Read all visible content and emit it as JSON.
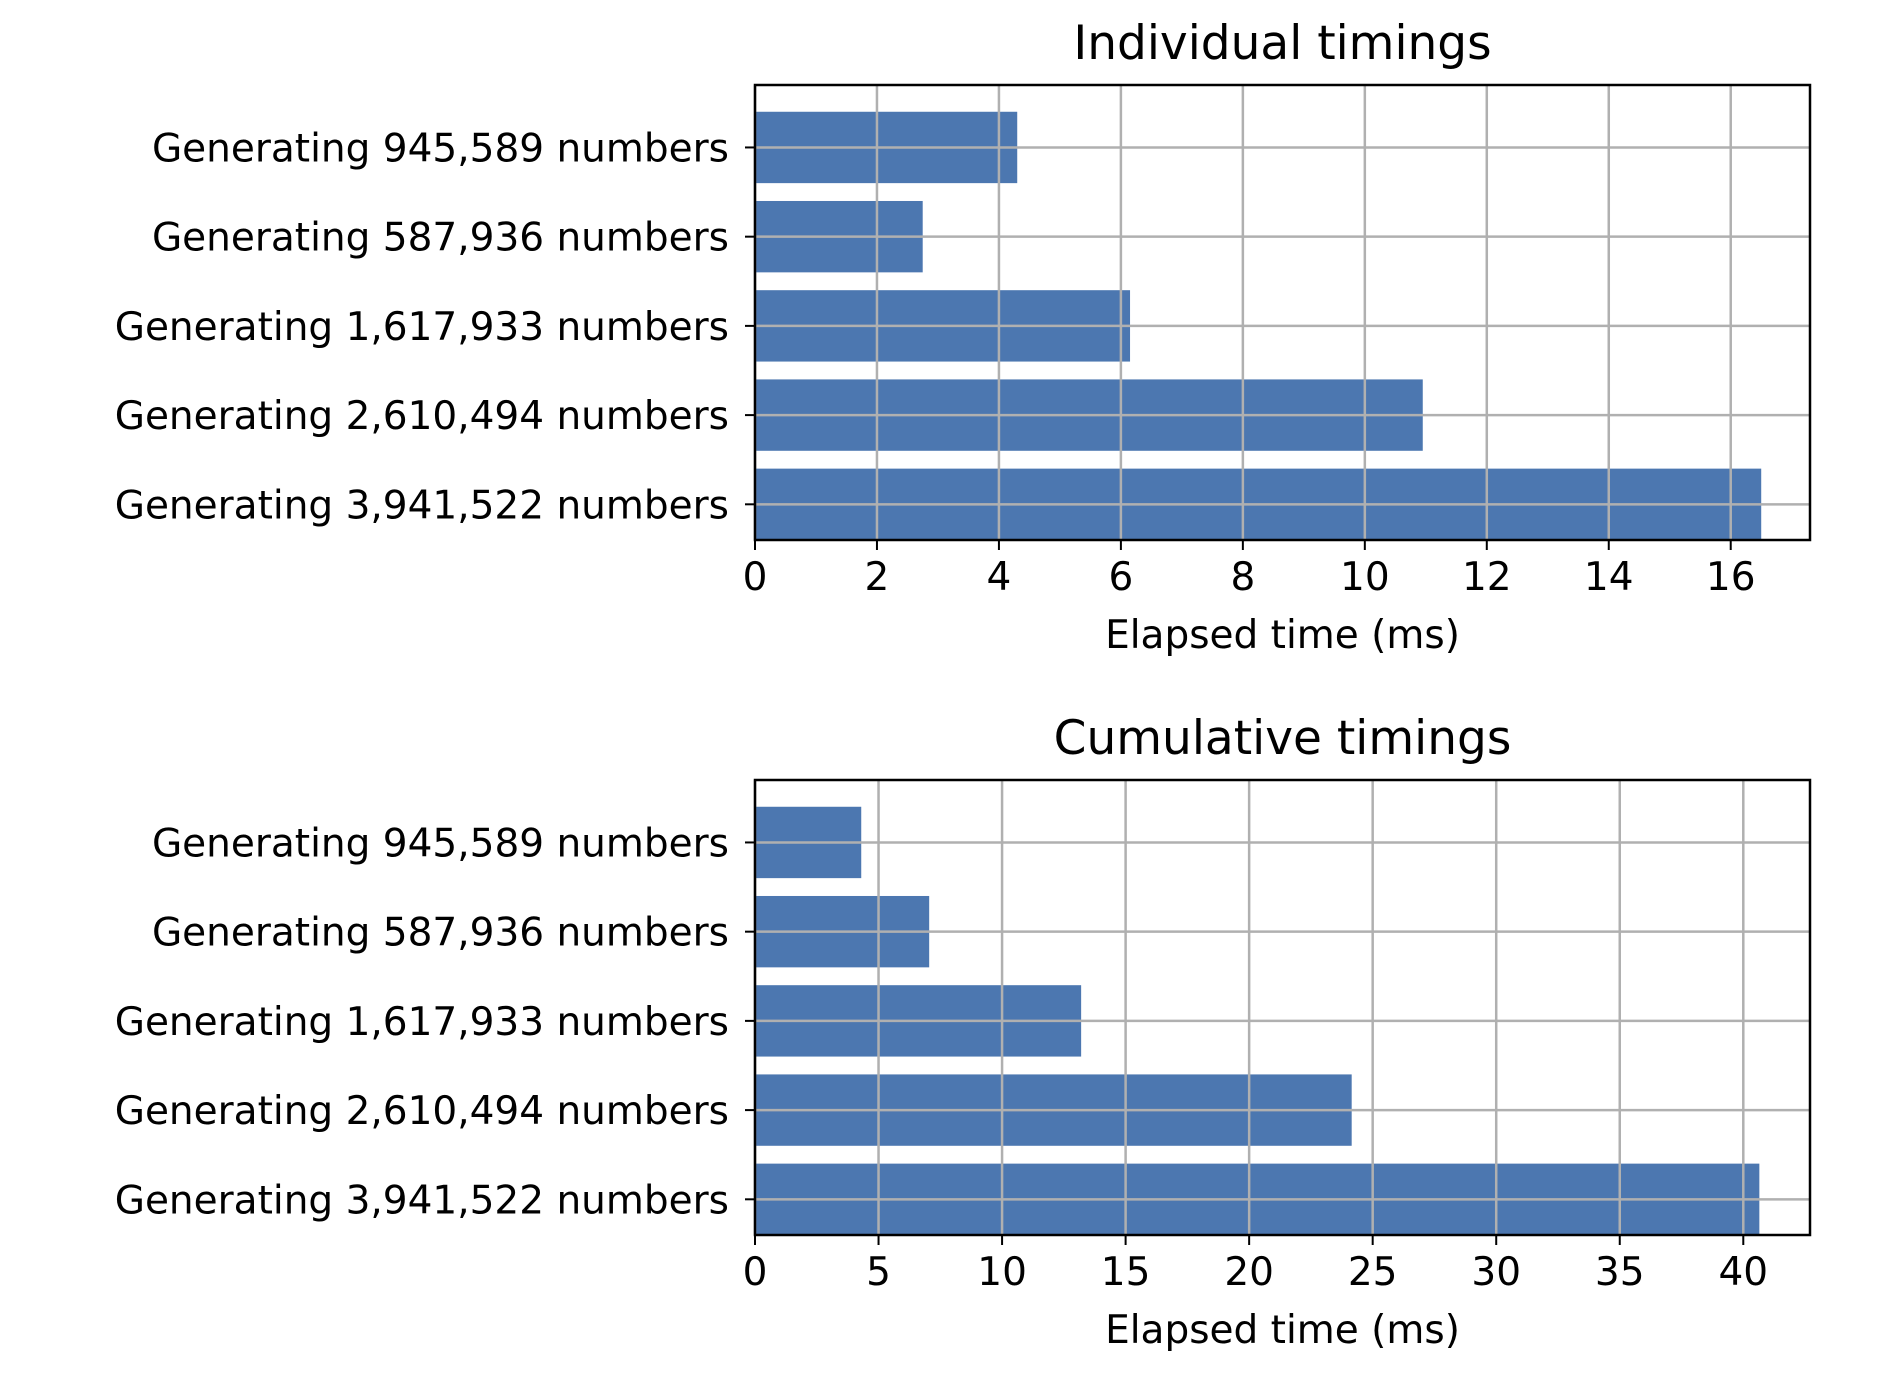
{
  "chart_data": [
    {
      "type": "bar",
      "orientation": "horizontal",
      "title": "Individual timings",
      "xlabel": "Elapsed time (ms)",
      "ylabel": "",
      "categories": [
        "Generating 945,589 numbers",
        "Generating 587,936 numbers",
        "Generating 1,617,933 numbers",
        "Generating 2,610,494 numbers",
        "Generating 3,941,522 numbers"
      ],
      "values": [
        4.3,
        2.75,
        6.15,
        10.95,
        16.5
      ],
      "xlim": [
        0,
        17.3
      ],
      "xticks": [
        "0",
        "2",
        "4",
        "6",
        "8",
        "10",
        "12",
        "14",
        "16"
      ],
      "grid": true,
      "bar_color": "#4c77b0"
    },
    {
      "type": "bar",
      "orientation": "horizontal",
      "title": "Cumulative timings",
      "xlabel": "Elapsed time (ms)",
      "ylabel": "",
      "categories": [
        "Generating 945,589 numbers",
        "Generating 587,936 numbers",
        "Generating 1,617,933 numbers",
        "Generating 2,610,494 numbers",
        "Generating 3,941,522 numbers"
      ],
      "values": [
        4.3,
        7.05,
        13.2,
        24.15,
        40.65
      ],
      "xlim": [
        0,
        42.7
      ],
      "xticks": [
        "0",
        "5",
        "10",
        "15",
        "20",
        "25",
        "30",
        "35",
        "40"
      ],
      "grid": true,
      "bar_color": "#4c77b0"
    }
  ]
}
